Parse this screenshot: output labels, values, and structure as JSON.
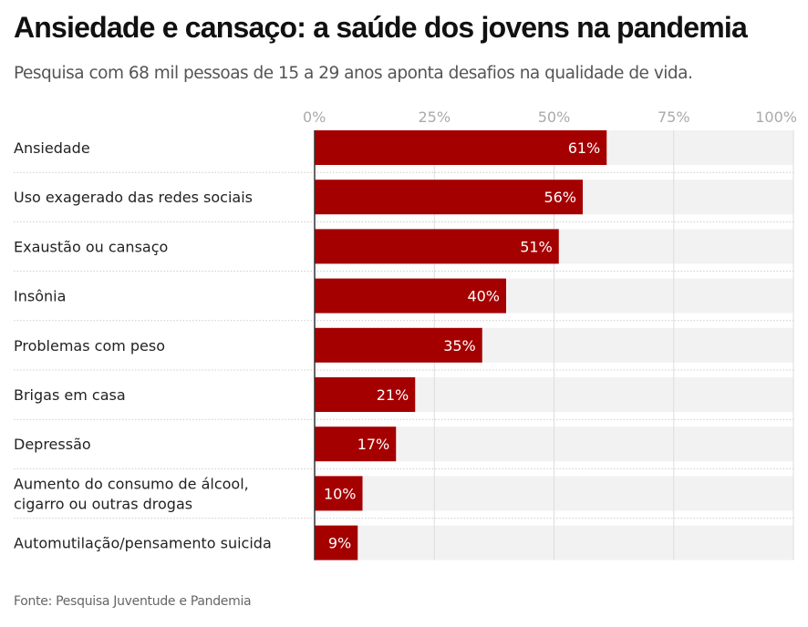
{
  "chart_data": {
    "type": "bar",
    "orientation": "horizontal",
    "title": "Ansiedade e cansaço: a saúde dos jovens na pandemia",
    "subtitle": "Pesquisa com 68 mil pessoas de 15 a 29 anos aponta desafios na qualidade de vida.",
    "source": "Fonte: Pesquisa Juventude e Pandemia",
    "xlabel": "",
    "ylabel": "",
    "xlim": [
      0,
      100
    ],
    "x_ticks": [
      0,
      25,
      50,
      75,
      100
    ],
    "x_tick_labels": [
      "0%",
      "25%",
      "50%",
      "75%",
      "100%"
    ],
    "tick_position": "top",
    "grid": true,
    "categories": [
      [
        "Ansiedade"
      ],
      [
        "Uso exagerado das redes sociais"
      ],
      [
        "Exaustão ou cansaço"
      ],
      [
        "Insônia"
      ],
      [
        "Problemas com peso"
      ],
      [
        "Brigas em casa"
      ],
      [
        "Depressão"
      ],
      [
        "Aumento do consumo de álcool,",
        "cigarro ou outras drogas"
      ],
      [
        "Automutilação/pensamento suicida"
      ]
    ],
    "values": [
      61,
      56,
      51,
      40,
      35,
      21,
      17,
      10,
      9
    ],
    "value_labels": [
      "61%",
      "56%",
      "51%",
      "40%",
      "35%",
      "21%",
      "17%",
      "10%",
      "9%"
    ],
    "colors": {
      "bar": "#a50000",
      "track": "#f2f2f2",
      "grid": "#dddddd",
      "axis": "#333333",
      "separator": "#cccccc"
    }
  }
}
